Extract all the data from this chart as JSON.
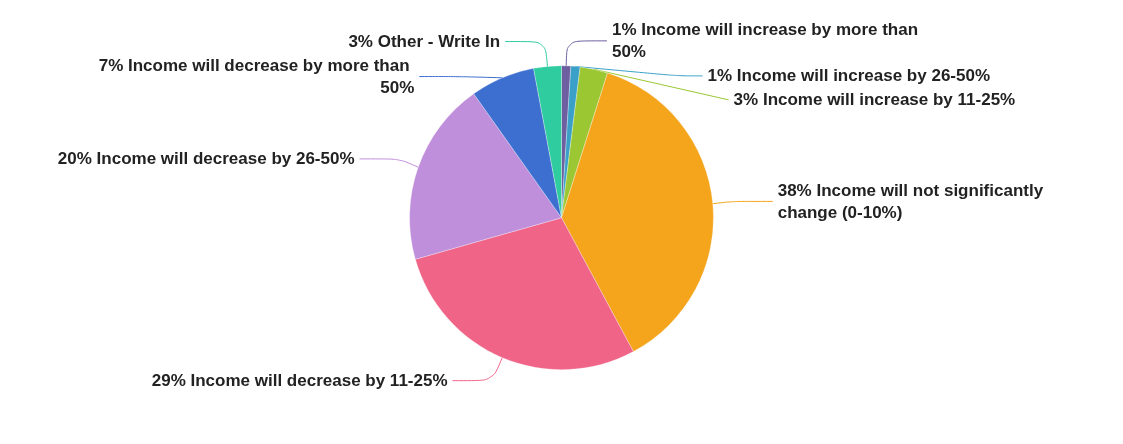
{
  "chart_data": {
    "type": "pie",
    "categories": [
      "Income will increase by more than 50%",
      "Income will increase by 26-50%",
      "Income will increase by 11-25%",
      "Income will not significantly change (0-10%)",
      "Income will decrease by 11-25%",
      "Income will decrease by 26-50%",
      "Income will decrease by more than 50%",
      "Other - Write In"
    ],
    "values": [
      1,
      1,
      3,
      38,
      29,
      20,
      7,
      3
    ],
    "value_labels": [
      "1%",
      "1%",
      "3%",
      "38%",
      "29%",
      "20%",
      "7%",
      "3%"
    ],
    "colors": [
      "#6e5fa0",
      "#3aa0c8",
      "#9bc832",
      "#f4a51c",
      "#f06488",
      "#bf8fdb",
      "#3d6fd0",
      "#2ecc9f"
    ],
    "legend": false
  }
}
